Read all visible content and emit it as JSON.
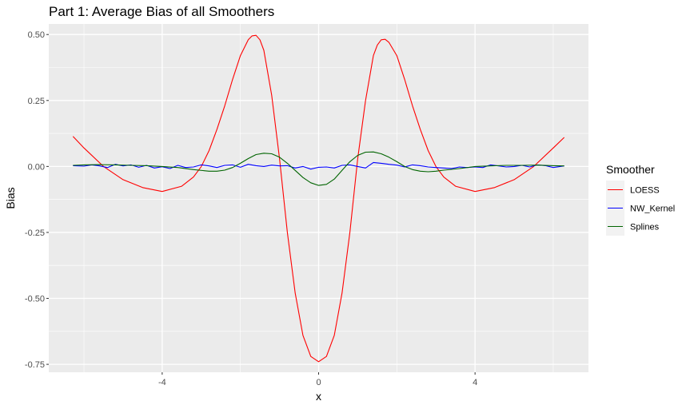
{
  "chart_data": {
    "type": "line",
    "title": "Part 1: Average Bias of all Smoothers",
    "xlabel": "x",
    "ylabel": "Bias",
    "xlim": [
      -6.9,
      6.9
    ],
    "ylim": [
      -0.78,
      0.54
    ],
    "x_ticks": [
      -4,
      0,
      4
    ],
    "x_tick_labels": [
      "-4",
      "0",
      "4"
    ],
    "y_ticks": [
      0.5,
      0.25,
      0.0,
      -0.25,
      -0.5,
      -0.75
    ],
    "y_tick_labels": [
      "0.50",
      "0.25",
      "0.00",
      "-0.25",
      "-0.50",
      "-0.75"
    ],
    "grid": true,
    "legend": {
      "title": "Smoother",
      "position": "right"
    },
    "series": [
      {
        "name": "LOESS",
        "color": "#ff0000",
        "x": [
          -6.28,
          -6.0,
          -5.5,
          -5.0,
          -4.5,
          -4.0,
          -3.5,
          -3.2,
          -3.0,
          -2.8,
          -2.6,
          -2.4,
          -2.2,
          -2.0,
          -1.8,
          -1.7,
          -1.6,
          -1.5,
          -1.4,
          -1.2,
          -1.0,
          -0.8,
          -0.6,
          -0.4,
          -0.2,
          0.0,
          0.2,
          0.4,
          0.6,
          0.8,
          1.0,
          1.2,
          1.4,
          1.5,
          1.6,
          1.7,
          1.8,
          2.0,
          2.2,
          2.4,
          2.6,
          2.8,
          3.0,
          3.2,
          3.5,
          4.0,
          4.5,
          5.0,
          5.5,
          6.0,
          6.28
        ],
        "y": [
          0.114,
          0.07,
          0.0,
          -0.05,
          -0.08,
          -0.095,
          -0.075,
          -0.04,
          0.0,
          0.06,
          0.14,
          0.23,
          0.33,
          0.42,
          0.48,
          0.495,
          0.497,
          0.48,
          0.44,
          0.27,
          0.03,
          -0.25,
          -0.48,
          -0.64,
          -0.72,
          -0.74,
          -0.72,
          -0.64,
          -0.48,
          -0.25,
          0.03,
          0.25,
          0.42,
          0.46,
          0.48,
          0.482,
          0.47,
          0.42,
          0.33,
          0.23,
          0.14,
          0.06,
          0.0,
          -0.04,
          -0.075,
          -0.095,
          -0.08,
          -0.05,
          0.0,
          0.07,
          0.11
        ]
      },
      {
        "name": "NW_Kernel",
        "color": "#0000ff",
        "x": [
          -6.28,
          -6.0,
          -5.8,
          -5.6,
          -5.4,
          -5.2,
          -5.0,
          -4.8,
          -4.6,
          -4.4,
          -4.2,
          -4.0,
          -3.8,
          -3.6,
          -3.4,
          -3.2,
          -3.0,
          -2.8,
          -2.6,
          -2.4,
          -2.2,
          -2.0,
          -1.8,
          -1.6,
          -1.4,
          -1.2,
          -1.0,
          -0.8,
          -0.6,
          -0.4,
          -0.2,
          0.0,
          0.2,
          0.4,
          0.6,
          0.8,
          1.0,
          1.2,
          1.4,
          1.6,
          1.8,
          2.0,
          2.2,
          2.4,
          2.6,
          2.8,
          3.0,
          3.2,
          3.4,
          3.6,
          3.8,
          4.0,
          4.2,
          4.4,
          4.6,
          4.8,
          5.0,
          5.2,
          5.4,
          5.6,
          5.8,
          6.0,
          6.28
        ],
        "y": [
          0.003,
          0.001,
          0.006,
          0.002,
          -0.004,
          0.008,
          0.002,
          0.006,
          -0.003,
          0.004,
          -0.006,
          -0.001,
          -0.008,
          0.004,
          -0.004,
          -0.002,
          0.006,
          0.002,
          -0.004,
          0.004,
          0.006,
          -0.003,
          0.008,
          0.003,
          0.0,
          0.005,
          0.002,
          0.003,
          -0.006,
          0.0,
          -0.01,
          -0.003,
          -0.002,
          -0.006,
          0.004,
          0.006,
          0.0,
          -0.006,
          0.015,
          0.012,
          0.008,
          0.005,
          -0.002,
          0.006,
          0.003,
          -0.002,
          -0.004,
          -0.006,
          -0.008,
          -0.002,
          -0.004,
          -0.002,
          -0.004,
          0.006,
          0.002,
          -0.002,
          0.0,
          0.004,
          -0.002,
          0.006,
          0.003,
          -0.004,
          0.002
        ]
      },
      {
        "name": "Splines",
        "color": "#006400",
        "x": [
          -6.28,
          -6.0,
          -5.6,
          -5.2,
          -4.8,
          -4.4,
          -4.0,
          -3.6,
          -3.2,
          -2.8,
          -2.6,
          -2.4,
          -2.2,
          -2.0,
          -1.8,
          -1.6,
          -1.4,
          -1.2,
          -1.0,
          -0.8,
          -0.6,
          -0.4,
          -0.2,
          0.0,
          0.2,
          0.4,
          0.6,
          0.8,
          1.0,
          1.2,
          1.4,
          1.6,
          1.8,
          2.0,
          2.2,
          2.4,
          2.6,
          2.8,
          3.0,
          3.2,
          3.6,
          4.0,
          4.4,
          4.8,
          5.2,
          5.6,
          6.0,
          6.28
        ],
        "y": [
          0.004,
          0.006,
          0.007,
          0.006,
          0.004,
          0.003,
          0.0,
          -0.004,
          -0.012,
          -0.018,
          -0.018,
          -0.014,
          -0.004,
          0.012,
          0.03,
          0.045,
          0.05,
          0.048,
          0.035,
          0.012,
          -0.015,
          -0.042,
          -0.062,
          -0.072,
          -0.068,
          -0.048,
          -0.015,
          0.018,
          0.042,
          0.054,
          0.055,
          0.048,
          0.035,
          0.018,
          0.0,
          -0.012,
          -0.018,
          -0.02,
          -0.018,
          -0.014,
          -0.008,
          0.0,
          0.002,
          0.004,
          0.004,
          0.005,
          0.003,
          0.002
        ]
      }
    ]
  }
}
